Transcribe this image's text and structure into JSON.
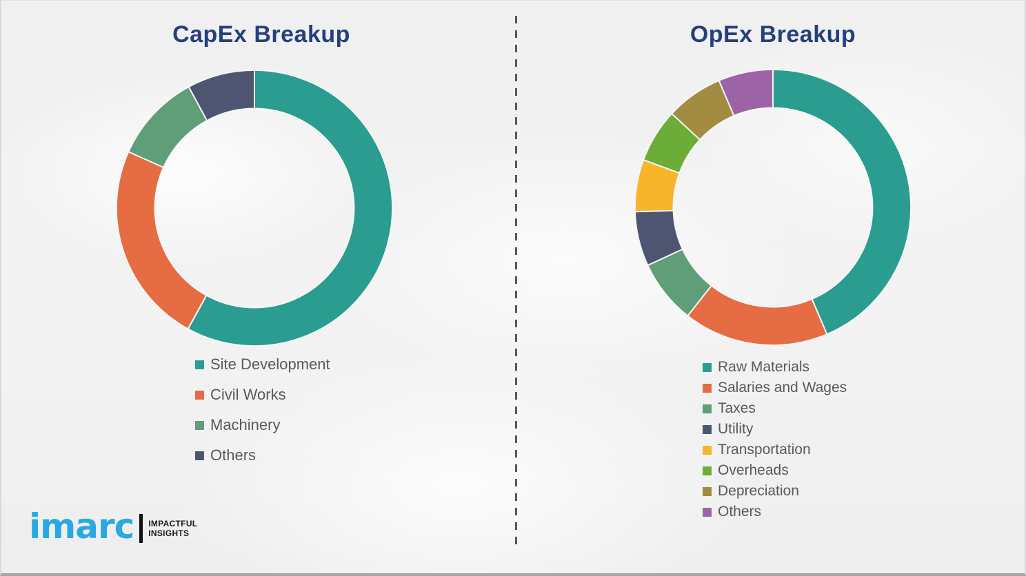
{
  "page": {
    "background_color": "#f2f2f2",
    "divider_color": "#57575b",
    "title_color": "#26407b",
    "legend_text_color": "#595959"
  },
  "logo": {
    "brand": "imarc",
    "brand_color": "#29a9e1",
    "tagline_line1": "IMPACTFUL",
    "tagline_line2": "INSIGHTS"
  },
  "chart_data": [
    {
      "type": "pie",
      "subtype": "donut",
      "title": "CapEx Breakup",
      "legend_position": "below",
      "start_angle_deg": 0,
      "segments": [
        {
          "label": "Site Development",
          "value": 58.0,
          "color": "#2a9d90"
        },
        {
          "label": "Civil Works",
          "value": 23.7,
          "color": "#e66c43"
        },
        {
          "label": "Machinery",
          "value": 10.4,
          "color": "#5f9e78"
        },
        {
          "label": "Others",
          "value": 7.9,
          "color": "#4e5570"
        }
      ]
    },
    {
      "type": "pie",
      "subtype": "donut",
      "title": "OpEx Breakup",
      "legend_position": "below",
      "start_angle_deg": 0,
      "segments": [
        {
          "label": "Raw Materials",
          "value": 43.6,
          "color": "#2a9d90"
        },
        {
          "label": "Salaries and Wages",
          "value": 17.0,
          "color": "#e66c43"
        },
        {
          "label": "Taxes",
          "value": 7.5,
          "color": "#5f9e78"
        },
        {
          "label": "Utility",
          "value": 6.4,
          "color": "#4e5570"
        },
        {
          "label": "Transportation",
          "value": 6.1,
          "color": "#f6b52b"
        },
        {
          "label": "Overheads",
          "value": 6.3,
          "color": "#6cad38"
        },
        {
          "label": "Depreciation",
          "value": 6.7,
          "color": "#a18c41"
        },
        {
          "label": "Others",
          "value": 6.4,
          "color": "#9c64a6"
        }
      ]
    }
  ]
}
